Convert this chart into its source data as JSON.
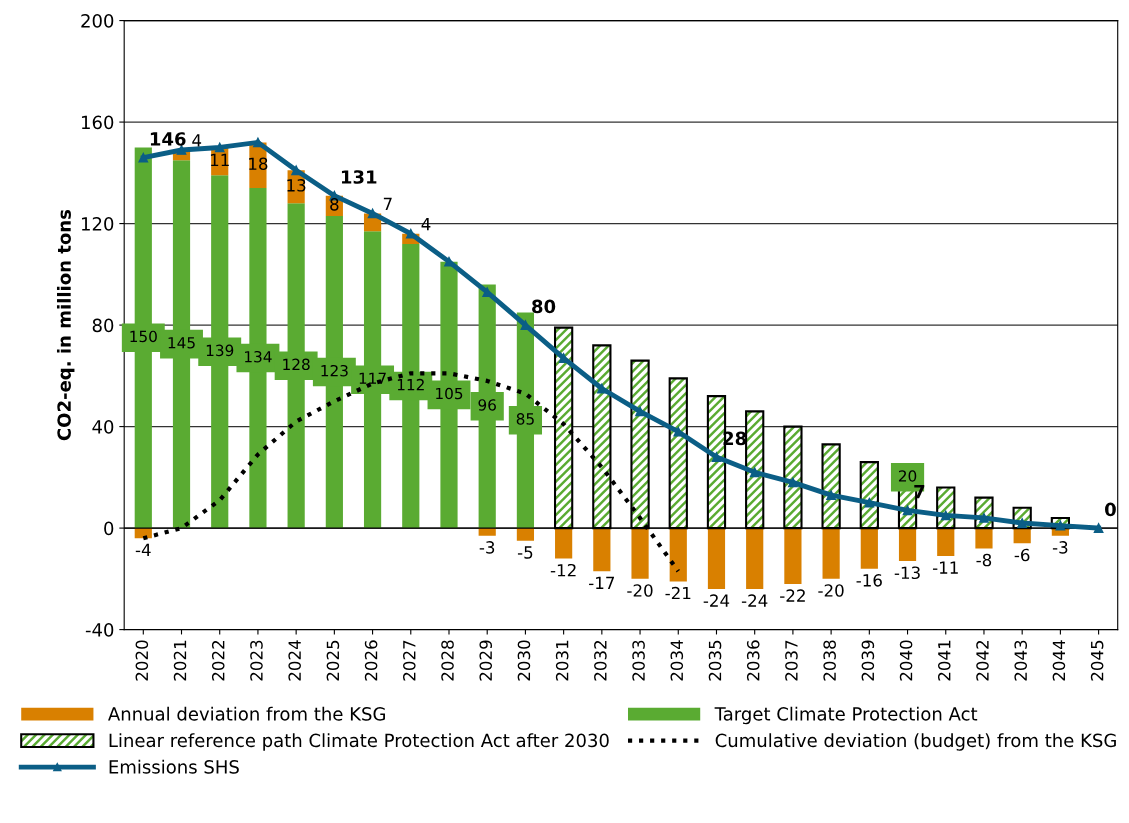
{
  "chart_data": {
    "type": "bar",
    "stacked": true,
    "ylabel": "CO2-eq. in million tons",
    "categories": [
      "2020",
      "2021",
      "2022",
      "2023",
      "2024",
      "2025",
      "2026",
      "2027",
      "2028",
      "2029",
      "2030",
      "2031",
      "2032",
      "2033",
      "2034",
      "2035",
      "2036",
      "2037",
      "2038",
      "2039",
      "2040",
      "2041",
      "2042",
      "2043",
      "2044",
      "2045"
    ],
    "ylim": [
      -40,
      200
    ],
    "yticks": [
      -40,
      0,
      40,
      80,
      120,
      160,
      200
    ],
    "grid": "y",
    "legend": "bottom",
    "series": [
      {
        "name": "Target Climate Protection Act",
        "color": "#5aab32",
        "values": [
          150,
          145,
          139,
          134,
          128,
          123,
          117,
          112,
          105,
          96,
          85,
          null,
          null,
          null,
          null,
          null,
          null,
          null,
          null,
          null,
          null,
          null,
          null,
          null,
          null,
          null
        ],
        "value_labels": [
          "150",
          "145",
          "139",
          "134",
          "128",
          "123",
          "117",
          "112",
          "105",
          "96",
          "85",
          null,
          null,
          null,
          null,
          null,
          null,
          null,
          null,
          null,
          null,
          null,
          null,
          null,
          null,
          null
        ]
      },
      {
        "name": "Linear reference path Climate Protection Act after 2030",
        "color": "#5aab32",
        "values": [
          null,
          null,
          null,
          null,
          null,
          null,
          null,
          null,
          null,
          null,
          null,
          79,
          72,
          66,
          59,
          52,
          46,
          40,
          33,
          26,
          20,
          16,
          12,
          8,
          4,
          null
        ],
        "value_labels": [
          null,
          null,
          null,
          null,
          null,
          null,
          null,
          null,
          null,
          null,
          null,
          null,
          null,
          null,
          null,
          null,
          null,
          null,
          null,
          null,
          "20",
          null,
          null,
          null,
          null,
          null
        ]
      },
      {
        "name": "Annual deviation from the KSG",
        "color": "#d98000",
        "values": [
          -4,
          4,
          11,
          18,
          13,
          8,
          7,
          4,
          null,
          -3,
          -5,
          -12,
          -17,
          -20,
          -21,
          -24,
          -24,
          -22,
          -20,
          -16,
          -13,
          -11,
          -8,
          -6,
          -3,
          null
        ],
        "data_labels": true
      },
      {
        "name": "Cumulative deviation (budget) from the KSG",
        "type": "line",
        "color": "#000000",
        "line_style": "dotted",
        "marker": "none",
        "values": [
          -4,
          0,
          11,
          29,
          42,
          50,
          57,
          61,
          61,
          58,
          53,
          41,
          24,
          4,
          -17,
          null,
          null,
          null,
          null,
          null,
          null,
          null,
          null,
          null,
          null,
          null
        ]
      },
      {
        "name": "Emissions SHS",
        "type": "line",
        "color": "#0b5e86",
        "line_style": "solid",
        "marker": "triangle",
        "values": [
          146,
          149,
          150,
          152,
          141,
          131,
          124,
          116,
          105,
          93,
          80,
          67,
          55,
          46,
          38,
          28,
          22,
          18,
          13,
          10,
          7,
          5,
          4,
          2,
          1,
          0
        ],
        "value_labels": [
          "146",
          null,
          null,
          null,
          null,
          "131",
          null,
          null,
          null,
          null,
          "80",
          null,
          null,
          null,
          null,
          "28",
          null,
          null,
          null,
          null,
          "7",
          null,
          null,
          null,
          null,
          "0"
        ]
      }
    ]
  }
}
